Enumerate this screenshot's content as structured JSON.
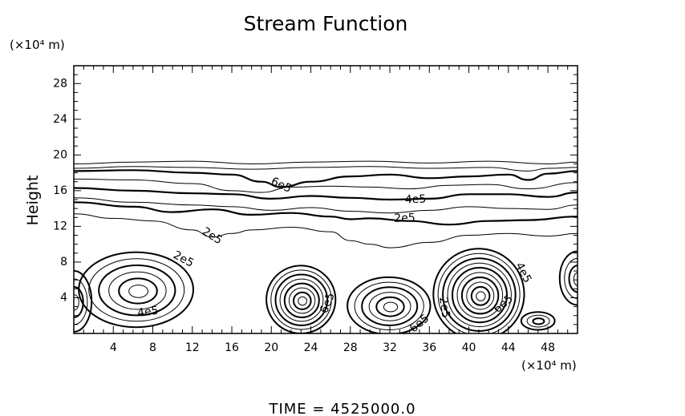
{
  "chart_data": {
    "type": "contour",
    "title": "Stream Function",
    "footer": "TIME = 4525000.0",
    "xlabel": "",
    "ylabel": "Height",
    "x_unit_label": "(×10⁴ m)",
    "y_unit_label": "(×10⁴ m)",
    "xlim": [
      0,
      51
    ],
    "ylim": [
      0,
      30
    ],
    "x_ticks": [
      4,
      8,
      12,
      16,
      20,
      24,
      28,
      32,
      36,
      40,
      44,
      48
    ],
    "y_ticks": [
      4,
      8,
      12,
      16,
      20,
      24,
      28
    ],
    "upper_contours": [
      {
        "level": "",
        "bold": false,
        "points": [
          [
            0,
            19.0
          ],
          [
            6,
            19.2
          ],
          [
            12,
            19.3
          ],
          [
            18,
            19.0
          ],
          [
            24,
            19.2
          ],
          [
            30,
            19.3
          ],
          [
            36,
            19.1
          ],
          [
            42,
            19.3
          ],
          [
            48,
            19.0
          ],
          [
            51,
            19.2
          ]
        ]
      },
      {
        "level": "",
        "bold": false,
        "points": [
          [
            0,
            18.5
          ],
          [
            6,
            18.7
          ],
          [
            12,
            18.6
          ],
          [
            18,
            18.4
          ],
          [
            24,
            18.6
          ],
          [
            30,
            18.7
          ],
          [
            36,
            18.5
          ],
          [
            42,
            18.6
          ],
          [
            46,
            18.2
          ],
          [
            48,
            18.5
          ],
          [
            51,
            18.6
          ]
        ]
      },
      {
        "level": "6e5",
        "bold": true,
        "points": [
          [
            0,
            18.2
          ],
          [
            6,
            18.3
          ],
          [
            12,
            18.0
          ],
          [
            16,
            17.8
          ],
          [
            19,
            17.0
          ],
          [
            21,
            16.4
          ],
          [
            24,
            17.0
          ],
          [
            28,
            17.6
          ],
          [
            32,
            17.8
          ],
          [
            36,
            17.4
          ],
          [
            40,
            17.6
          ],
          [
            44,
            17.8
          ],
          [
            46,
            17.2
          ],
          [
            48,
            17.9
          ],
          [
            51,
            18.2
          ]
        ]
      },
      {
        "level": "",
        "bold": false,
        "points": [
          [
            0,
            17.3
          ],
          [
            6,
            17.2
          ],
          [
            12,
            16.8
          ],
          [
            16,
            16.0
          ],
          [
            19,
            15.8
          ],
          [
            22,
            16.4
          ],
          [
            26,
            16.5
          ],
          [
            30,
            16.4
          ],
          [
            34,
            16.2
          ],
          [
            38,
            16.6
          ],
          [
            42,
            16.7
          ],
          [
            46,
            16.2
          ],
          [
            51,
            16.9
          ]
        ]
      },
      {
        "level": "4e5",
        "bold": true,
        "points": [
          [
            0,
            16.3
          ],
          [
            6,
            16.0
          ],
          [
            12,
            15.7
          ],
          [
            16,
            15.6
          ],
          [
            20,
            15.1
          ],
          [
            24,
            15.4
          ],
          [
            28,
            15.2
          ],
          [
            32,
            15.0
          ],
          [
            36,
            15.1
          ],
          [
            40,
            15.6
          ],
          [
            44,
            15.6
          ],
          [
            48,
            15.3
          ],
          [
            51,
            15.8
          ]
        ]
      },
      {
        "level": "",
        "bold": false,
        "points": [
          [
            0,
            15.2
          ],
          [
            6,
            14.7
          ],
          [
            12,
            14.4
          ],
          [
            16,
            14.2
          ],
          [
            20,
            13.8
          ],
          [
            24,
            14.1
          ],
          [
            28,
            13.7
          ],
          [
            32,
            13.5
          ],
          [
            36,
            13.8
          ],
          [
            40,
            14.2
          ],
          [
            44,
            14.0
          ],
          [
            48,
            13.9
          ],
          [
            51,
            14.4
          ]
        ]
      },
      {
        "level": "",
        "bold": true,
        "points": [
          [
            0,
            14.7
          ],
          [
            6,
            14.2
          ],
          [
            10,
            13.6
          ],
          [
            14,
            13.9
          ],
          [
            18,
            13.3
          ],
          [
            22,
            13.5
          ],
          [
            26,
            13.1
          ],
          [
            28,
            12.8
          ],
          [
            30,
            12.9
          ],
          [
            34,
            12.6
          ],
          [
            38,
            12.2
          ],
          [
            42,
            12.6
          ],
          [
            46,
            12.7
          ],
          [
            51,
            13.1
          ]
        ]
      },
      {
        "level": "2e5",
        "bold": false,
        "points": [
          [
            0,
            13.4
          ],
          [
            4,
            12.9
          ],
          [
            8,
            12.6
          ],
          [
            12,
            11.6
          ],
          [
            14,
            10.8
          ],
          [
            16,
            11.2
          ],
          [
            18,
            11.6
          ],
          [
            22,
            11.9
          ],
          [
            26,
            11.4
          ],
          [
            28,
            10.4
          ],
          [
            30,
            10.0
          ],
          [
            32,
            9.6
          ],
          [
            36,
            10.2
          ],
          [
            40,
            11.0
          ],
          [
            44,
            11.2
          ],
          [
            48,
            10.9
          ],
          [
            51,
            11.2
          ]
        ]
      }
    ],
    "cells": [
      {
        "name": "cell-left-edge",
        "cx": 0.0,
        "cy": 3.6,
        "rx": 1.8,
        "ry": 3.4,
        "rings": 4
      },
      {
        "name": "cell-x6",
        "cx": 6.3,
        "cy": 4.9,
        "rx": 5.8,
        "ry": 4.2,
        "rings": 6
      },
      {
        "name": "cell-x23",
        "cx": 23.0,
        "cy": 3.8,
        "rx": 3.5,
        "ry": 3.8,
        "rings": 8
      },
      {
        "name": "cell-x32",
        "cx": 31.9,
        "cy": 3.1,
        "rx": 4.2,
        "ry": 3.2,
        "rings": 6
      },
      {
        "name": "cell-x41",
        "cx": 41.0,
        "cy": 4.4,
        "rx": 4.6,
        "ry": 5.1,
        "rings": 10
      },
      {
        "name": "cell-x47",
        "cx": 47.0,
        "cy": 1.4,
        "rx": 1.7,
        "ry": 1.0,
        "rings": 3
      },
      {
        "name": "cell-right-edge",
        "cx": 51.0,
        "cy": 6.2,
        "rx": 1.8,
        "ry": 3.0,
        "rings": 4
      }
    ],
    "annotations": [
      {
        "text": "6e5",
        "x": 21.0,
        "y": 16.6,
        "angle": 25
      },
      {
        "text": "4e5",
        "x": 34.6,
        "y": 15.0,
        "angle": -2
      },
      {
        "text": "2e5",
        "x": 33.5,
        "y": 12.9,
        "angle": -2
      },
      {
        "text": "2e5",
        "x": 14.0,
        "y": 10.9,
        "angle": 32
      },
      {
        "text": "2e5",
        "x": 11.1,
        "y": 8.3,
        "angle": 28
      },
      {
        "text": "4e5",
        "x": 7.5,
        "y": 2.4,
        "angle": -8
      },
      {
        "text": "6e5",
        "x": 25.7,
        "y": 3.4,
        "angle": -68
      },
      {
        "text": "2e5",
        "x": 37.5,
        "y": 2.9,
        "angle": 82
      },
      {
        "text": "6e5",
        "x": 35.0,
        "y": 1.1,
        "angle": -40
      },
      {
        "text": "4e5",
        "x": 45.5,
        "y": 6.8,
        "angle": 62
      },
      {
        "text": "6e5",
        "x": 43.5,
        "y": 3.3,
        "angle": -40
      }
    ]
  }
}
